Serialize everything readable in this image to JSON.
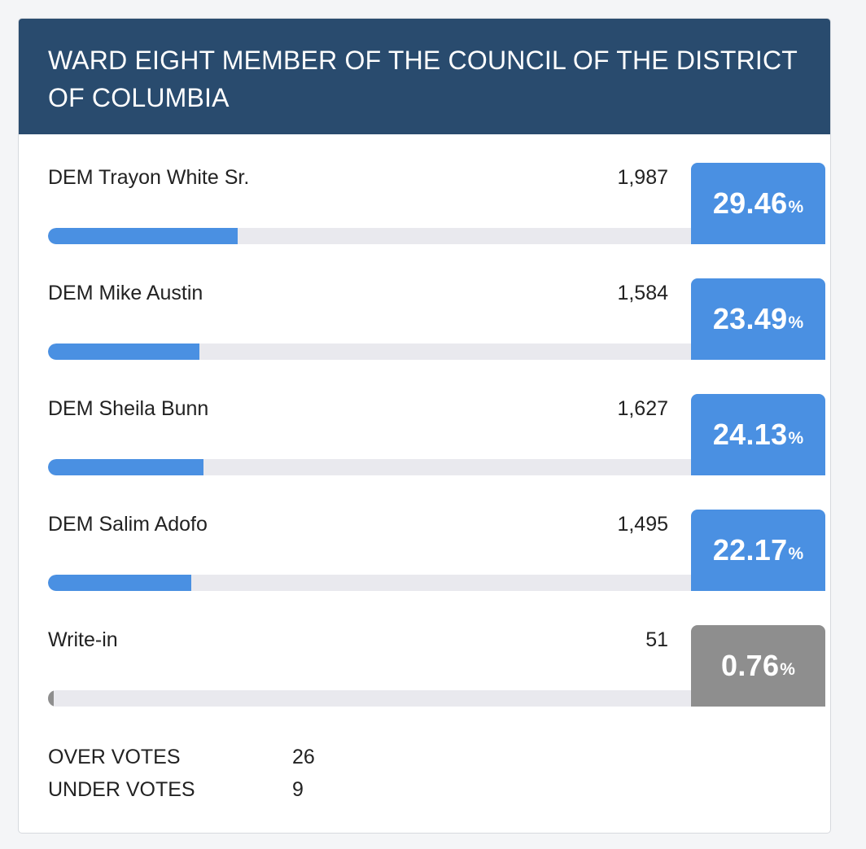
{
  "contest": {
    "title": "WARD EIGHT MEMBER OF THE COUNCIL OF THE DISTRICT OF COLUMBIA"
  },
  "percent_sign": "%",
  "candidates": [
    {
      "name": "DEM Trayon White Sr.",
      "votes": "1,987",
      "percent": "29.46",
      "share": 29.46,
      "color": "#4a90e2"
    },
    {
      "name": "DEM Mike Austin",
      "votes": "1,584",
      "percent": "23.49",
      "share": 23.49,
      "color": "#4a90e2"
    },
    {
      "name": "DEM Sheila Bunn",
      "votes": "1,627",
      "percent": "24.13",
      "share": 24.13,
      "color": "#4a90e2"
    },
    {
      "name": "DEM Salim Adofo",
      "votes": "1,495",
      "percent": "22.17",
      "share": 22.17,
      "color": "#4a90e2"
    },
    {
      "name": "Write-in",
      "votes": "51",
      "percent": "0.76",
      "share": 0.76,
      "color": "#8e8e8e"
    }
  ],
  "stats": [
    {
      "label": "OVER VOTES",
      "value": "26"
    },
    {
      "label": "UNDER VOTES",
      "value": "9"
    }
  ]
}
